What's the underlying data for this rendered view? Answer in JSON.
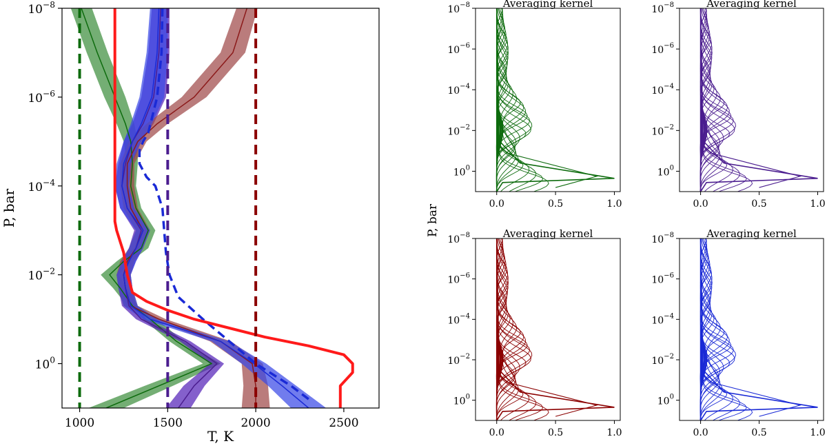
{
  "chart_data": [
    {
      "type": "line",
      "title": "",
      "xlabel": "T, K",
      "ylabel": "P, bar",
      "xlim": [
        900,
        2700
      ],
      "ylim_log10": [
        -8,
        1
      ],
      "y_scale": "log (inverted: 10^-8 at top, 10 at bottom)",
      "x_ticks": [
        1000,
        1500,
        2000,
        2500
      ],
      "x_tick_labels": [
        "1000",
        "1500",
        "2000",
        "2500"
      ],
      "y_ticks_log10": [
        -8,
        -6,
        -4,
        -2,
        0
      ],
      "y_tick_labels": [
        {
          "base": "10",
          "exp": "−8"
        },
        {
          "base": "10",
          "exp": "−6"
        },
        {
          "base": "10",
          "exp": "−4"
        },
        {
          "base": "10",
          "exp": "−2"
        },
        {
          "base": "10",
          "exp": "0"
        }
      ],
      "reference_lines": [
        {
          "name": "isotherm-1000K",
          "T": 1000,
          "color": "#0d6b0d",
          "style": "dashed"
        },
        {
          "name": "isotherm-1500K",
          "T": 1500,
          "color": "#4b1d8f",
          "style": "dashed"
        },
        {
          "name": "isotherm-2000K",
          "T": 2000,
          "color": "#8b0000",
          "style": "dashed"
        }
      ],
      "series": [
        {
          "name": "green-retrieval",
          "color": "#0d6b0d",
          "band_color": "#3f8f3f",
          "logP": [
            -8,
            -7,
            -6,
            -5.4,
            -5,
            -4.5,
            -4,
            -3.5,
            -3,
            -2.6,
            -2.3,
            -2.0,
            -1.7,
            -1.3,
            -1.0,
            -0.5,
            0,
            0.5,
            1
          ],
          "T": [
            1010,
            1100,
            1200,
            1260,
            1290,
            1300,
            1290,
            1320,
            1390,
            1350,
            1250,
            1170,
            1230,
            1300,
            1400,
            1550,
            1750,
            1450,
            1150
          ],
          "halfwidth": [
            60,
            60,
            60,
            50,
            40,
            30,
            30,
            30,
            40,
            40,
            40,
            50,
            40,
            30,
            40,
            40,
            50,
            80,
            100
          ]
        },
        {
          "name": "purple-retrieval",
          "color": "#4b1d8f",
          "band_color": "#5522b8",
          "logP": [
            -8,
            -7,
            -6,
            -5.4,
            -5,
            -4.5,
            -4,
            -3.5,
            -3,
            -2.6,
            -2.3,
            -2.0,
            -1.7,
            -1.3,
            -1.0,
            -0.5,
            0,
            0.5,
            1
          ],
          "T": [
            1460,
            1450,
            1420,
            1360,
            1300,
            1260,
            1240,
            1270,
            1350,
            1320,
            1280,
            1250,
            1260,
            1280,
            1350,
            1600,
            1780,
            1650,
            1560
          ],
          "halfwidth": [
            50,
            60,
            70,
            60,
            50,
            40,
            40,
            40,
            40,
            40,
            40,
            40,
            40,
            40,
            30,
            30,
            40,
            60,
            70
          ]
        },
        {
          "name": "darkred-retrieval",
          "color": "#8b1a1a",
          "band_color": "#a04a4a",
          "logP": [
            -8,
            -7,
            -6,
            -5.4,
            -5,
            -4.5,
            -4,
            -3.5,
            -3,
            -2.6,
            -2.3,
            -2.0,
            -1.7,
            -1.3,
            -1.0,
            -0.5,
            0,
            0.5,
            1
          ],
          "T": [
            1950,
            1870,
            1650,
            1440,
            1330,
            1270,
            1270,
            1290,
            1360,
            1320,
            1270,
            1250,
            1260,
            1290,
            1450,
            1800,
            1980,
            2000,
            2000
          ],
          "halfwidth": [
            60,
            70,
            70,
            60,
            50,
            40,
            40,
            40,
            40,
            40,
            40,
            40,
            40,
            40,
            40,
            60,
            60,
            70,
            80
          ]
        },
        {
          "name": "blue-retrieval",
          "color": "#1a2ad6",
          "band_color": "#3a4ae6",
          "logP": [
            -8,
            -7,
            -6,
            -5.4,
            -5,
            -4.5,
            -4,
            -3.5,
            -3,
            -2.6,
            -2.3,
            -2.0,
            -1.7,
            -1.3,
            -1.0,
            -0.5,
            0,
            0.5,
            1
          ],
          "T": [
            1450,
            1440,
            1410,
            1350,
            1300,
            1250,
            1240,
            1270,
            1360,
            1320,
            1280,
            1250,
            1260,
            1290,
            1400,
            1800,
            1990,
            2150,
            2300
          ],
          "halfwidth": [
            50,
            60,
            70,
            60,
            50,
            40,
            40,
            40,
            40,
            40,
            40,
            40,
            40,
            40,
            40,
            50,
            70,
            80,
            100
          ]
        },
        {
          "name": "blue-dashed-profile",
          "color": "#1a2ad6",
          "style": "dashed",
          "logP": [
            -8,
            -7,
            -6,
            -5.2,
            -5,
            -4.8,
            -4.5,
            -4.2,
            -4.0,
            -3.5,
            -3.0,
            -2.5,
            -2.0,
            -1.5,
            -1.0,
            -0.5,
            0,
            0.5,
            0.8
          ],
          "T": [
            1470,
            1465,
            1440,
            1390,
            1360,
            1340,
            1340,
            1380,
            1430,
            1470,
            1480,
            1490,
            1510,
            1560,
            1700,
            1850,
            2000,
            2200,
            2300
          ]
        },
        {
          "name": "red-true-profile",
          "color": "#ff1a1a",
          "style": "solid",
          "logP": [
            -8,
            -6,
            -4,
            -3.2,
            -3.0,
            -2.5,
            -2.0,
            -1.6,
            -1.4,
            -1.2,
            -1.0,
            -0.8,
            -0.6,
            -0.4,
            -0.2,
            0,
            0.2,
            0.5,
            1
          ],
          "T": [
            1200,
            1200,
            1200,
            1200,
            1210,
            1250,
            1270,
            1300,
            1380,
            1500,
            1650,
            1850,
            2050,
            2300,
            2500,
            2550,
            2550,
            2480,
            2480
          ]
        }
      ]
    },
    {
      "type": "line",
      "layout": "2x2 small multiples",
      "shared_ylabel": "P, bar",
      "x_ticks": [
        0.0,
        0.5,
        1.0
      ],
      "x_tick_labels": [
        "0.0",
        "0.5",
        "1.0"
      ],
      "xlim": [
        -0.18,
        1.05
      ],
      "ylim_log10": [
        -8,
        1
      ],
      "y_ticks_log10": [
        -8,
        -6,
        -4,
        -2,
        0
      ],
      "y_tick_labels": [
        {
          "base": "10",
          "exp": "−8"
        },
        {
          "base": "10",
          "exp": "−6"
        },
        {
          "base": "10",
          "exp": "−4"
        },
        {
          "base": "10",
          "exp": "−2"
        },
        {
          "base": "10",
          "exp": "0"
        }
      ],
      "panels": [
        {
          "name": "kernel-green",
          "title": "Averaging kernel",
          "color": "#0d6b0d",
          "peak_logP": 0.35,
          "n_curves": 40
        },
        {
          "name": "kernel-purple",
          "title": "Averaging kernel",
          "color": "#4b1d8f",
          "peak_logP": 0.35,
          "n_curves": 40
        },
        {
          "name": "kernel-darkred",
          "title": "Averaging kernel",
          "color": "#8b0000",
          "peak_logP": 0.35,
          "n_curves": 40
        },
        {
          "name": "kernel-blue",
          "title": "Averaging kernel",
          "color": "#1a2ad6",
          "peak_logP": 0.35,
          "n_curves": 40
        }
      ]
    }
  ]
}
